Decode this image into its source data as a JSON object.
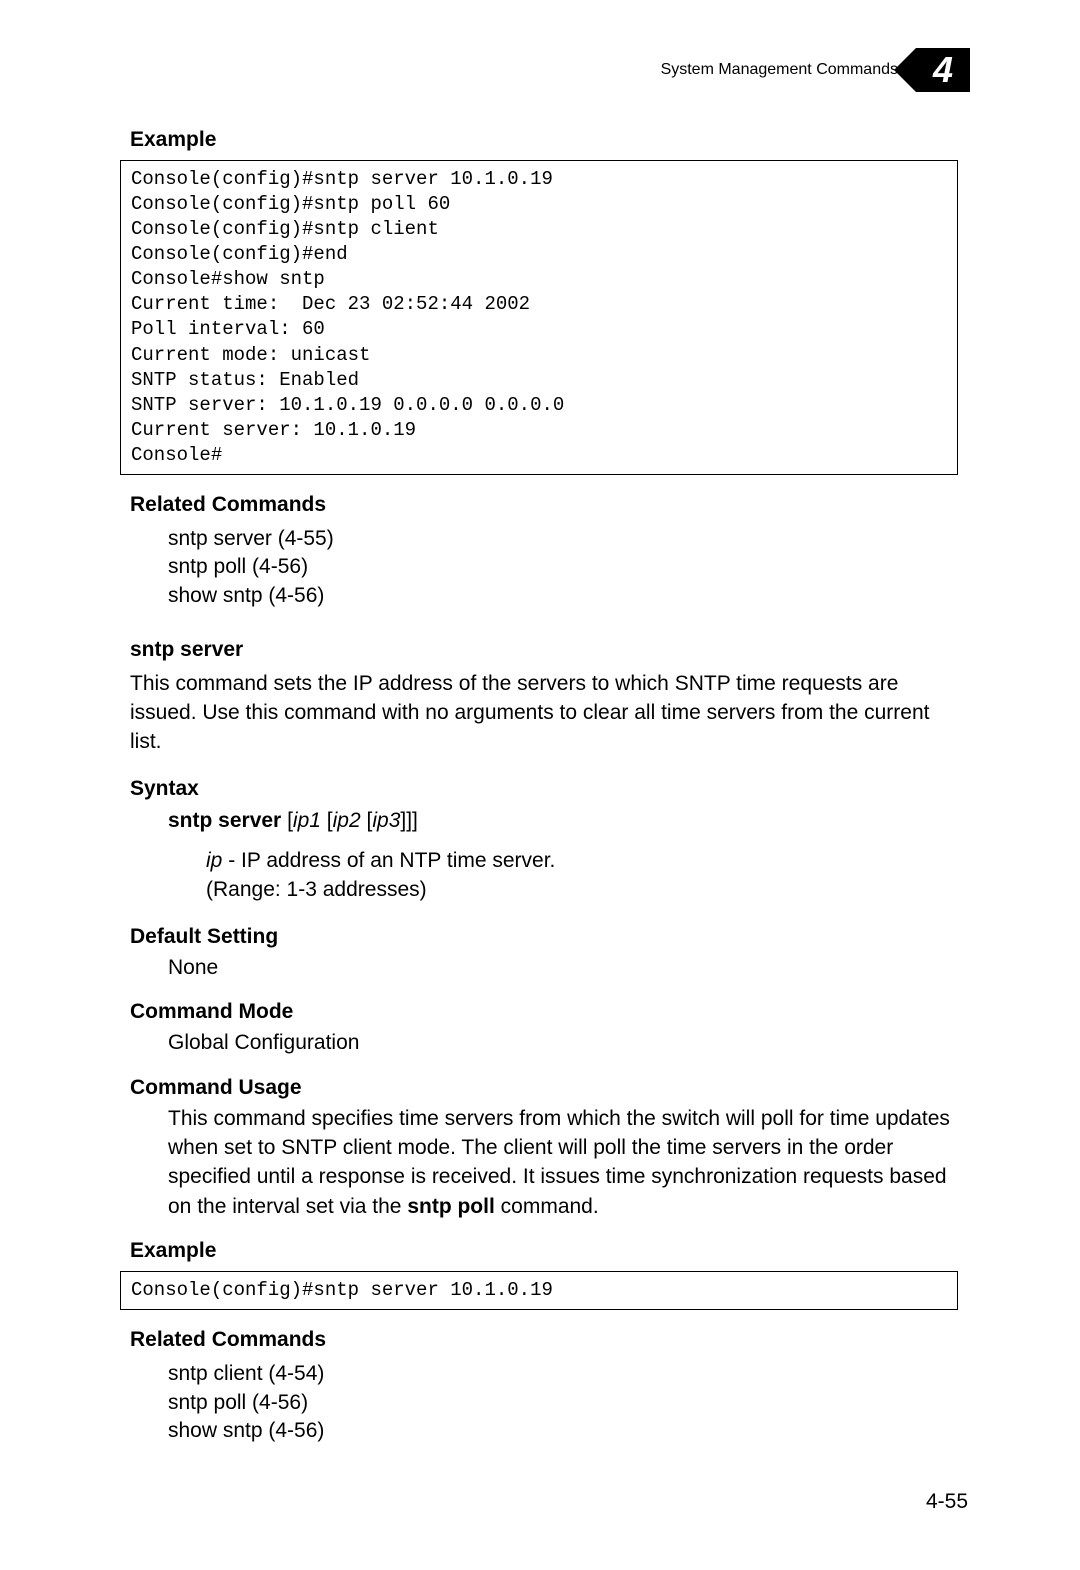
{
  "header": {
    "title": "System Management Commands",
    "chapter": "4"
  },
  "sec1": {
    "h_example": "Example",
    "code1": "Console(config)#sntp server 10.1.0.19\nConsole(config)#sntp poll 60\nConsole(config)#sntp client\nConsole(config)#end\nConsole#show sntp\nCurrent time:  Dec 23 02:52:44 2002\nPoll interval: 60\nCurrent mode: unicast\nSNTP status: Enabled\nSNTP server: 10.1.0.19 0.0.0.0 0.0.0.0\nCurrent server: 10.1.0.19\nConsole#",
    "h_related": "Related Commands",
    "rel1": "sntp server (4-55)",
    "rel2": "sntp poll (4-56)",
    "rel3": "show sntp (4-56)"
  },
  "cmd": {
    "name": "sntp server",
    "desc": "This command sets the IP address of the servers to which SNTP time requests are issued. Use this command with no arguments to clear all time servers from the current list.",
    "h_syntax": "Syntax",
    "syntax_cmd": "sntp server",
    "syntax_arg1": "ip1",
    "syntax_arg2": "ip2",
    "syntax_arg3": "ip3",
    "param_name": "ip",
    "param_desc": " - IP address of an NTP time server.",
    "param_range": "(Range: 1-3 addresses)",
    "h_default": "Default Setting",
    "default_val": "None",
    "h_mode": "Command Mode",
    "mode_val": "Global Configuration",
    "h_usage": "Command Usage",
    "usage_pre": "This command specifies time servers from which the switch will poll for time updates when set to SNTP client mode. The client will poll the time servers in the order specified until a response is received. It issues time synchronization requests based on the interval set via the ",
    "usage_bold": "sntp poll",
    "usage_post": " command.",
    "h_example2": "Example",
    "code2": "Console(config)#sntp server 10.1.0.19",
    "h_related2": "Related Commands",
    "rel2_1": "sntp client (4-54)",
    "rel2_2": "sntp poll (4-56)",
    "rel2_3": "show sntp (4-56)"
  },
  "pagenum": "4-55",
  "style": {
    "body_font": "Arial",
    "code_font": "Courier New",
    "font_size_body": 21,
    "font_size_code": 19,
    "bg": "#ffffff",
    "fg": "#000000",
    "border": "#000000"
  }
}
